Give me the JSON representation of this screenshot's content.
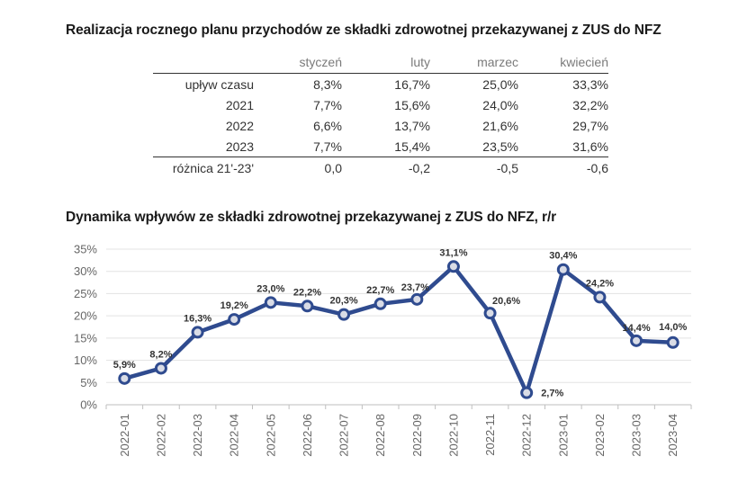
{
  "table": {
    "title": "Realizacja rocznego planu przychodów ze składki zdrowotnej przekazywanej z ZUS do NFZ",
    "headers": [
      "",
      "styczeń",
      "luty",
      "marzec",
      "kwiecień"
    ],
    "rows": [
      [
        "upływ czasu",
        "8,3%",
        "16,7%",
        "25,0%",
        "33,3%"
      ],
      [
        "2021",
        "7,7%",
        "15,6%",
        "24,0%",
        "32,2%"
      ],
      [
        "2022",
        "6,6%",
        "13,7%",
        "21,6%",
        "29,7%"
      ],
      [
        "2023",
        "7,7%",
        "15,4%",
        "23,5%",
        "31,6%"
      ],
      [
        "różnica 21'-23'",
        "0,0",
        "-0,2",
        "-0,5",
        "-0,6"
      ]
    ]
  },
  "chart_data": {
    "type": "line",
    "title": "Dynamika wpływów ze składki zdrowotnej przekazywanej z ZUS do NFZ, r/r",
    "categories": [
      "2022-01",
      "2022-02",
      "2022-03",
      "2022-04",
      "2022-05",
      "2022-06",
      "2022-07",
      "2022-08",
      "2022-09",
      "2022-10",
      "2022-11",
      "2022-12",
      "2023-01",
      "2023-02",
      "2023-03",
      "2023-04"
    ],
    "values": [
      5.9,
      8.2,
      16.3,
      19.2,
      23.0,
      22.2,
      20.3,
      22.7,
      23.7,
      31.1,
      20.6,
      2.7,
      30.4,
      24.2,
      14.4,
      14.0
    ],
    "data_labels": [
      "5,9%",
      "8,2%",
      "16,3%",
      "19,2%",
      "23,0%",
      "22,2%",
      "20,3%",
      "22,7%",
      "23,7%",
      "31,1%",
      "20,6%",
      "2,7%",
      "30,4%",
      "24,2%",
      "14,4%",
      "14,0%"
    ],
    "y_ticks": [
      "0%",
      "5%",
      "10%",
      "15%",
      "20%",
      "25%",
      "30%",
      "35%"
    ],
    "ylim": [
      0,
      35
    ],
    "grid": true,
    "line_color": "#2f4b8f",
    "marker_fill": "#d9dce6"
  }
}
